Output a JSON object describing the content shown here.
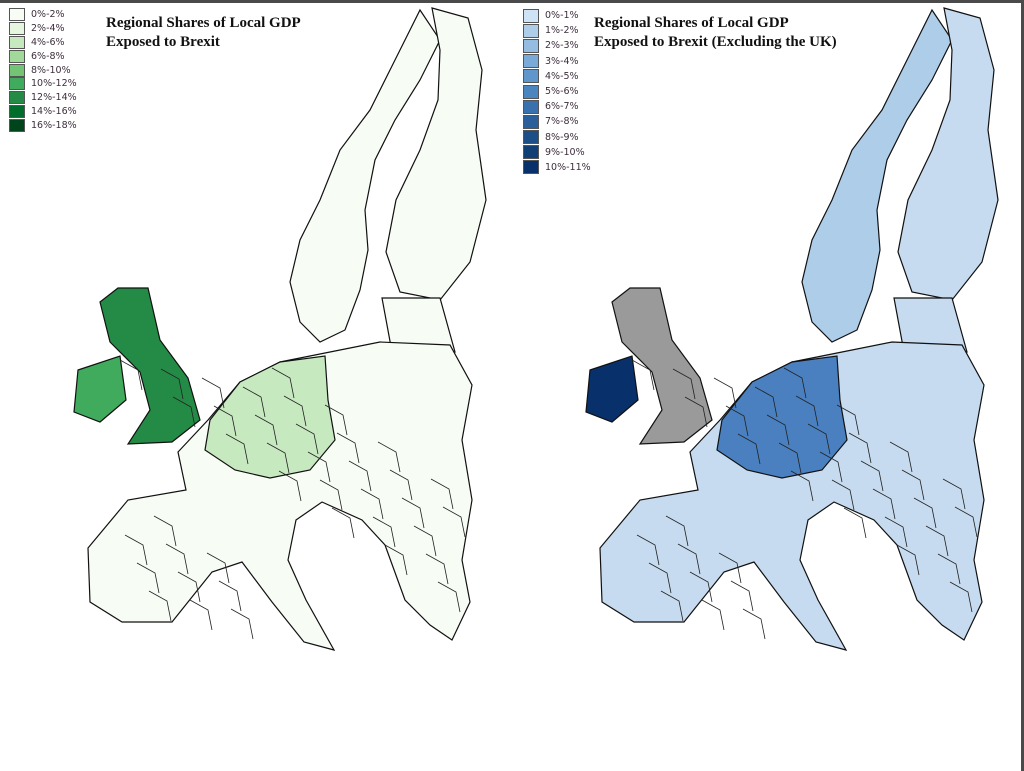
{
  "left_map": {
    "title_line1": "Regional Shares of Local GDP",
    "title_line2": "Exposed to Brexit",
    "legend": [
      {
        "label": "0%-2%",
        "color": "#f7fcf5"
      },
      {
        "label": "2%-4%",
        "color": "#e5f5e0"
      },
      {
        "label": "4%-6%",
        "color": "#c7e9c0"
      },
      {
        "label": "6%-8%",
        "color": "#a1d99b"
      },
      {
        "label": "8%-10%",
        "color": "#74c476"
      },
      {
        "label": "10%-12%",
        "color": "#41ab5d"
      },
      {
        "label": "12%-14%",
        "color": "#238b45"
      },
      {
        "label": "14%-16%",
        "color": "#006d2c"
      },
      {
        "label": "16%-18%",
        "color": "#00441b"
      }
    ],
    "fills": {
      "continent": "#f7fcf5",
      "core": "#c7e9c0",
      "britain": "#238b45",
      "ireland": "#41ab5d"
    }
  },
  "right_map": {
    "title_line1": "Regional Shares of Local GDP",
    "title_line2": "Exposed to Brexit (Excluding the UK)",
    "legend": [
      {
        "label": "0%-1%",
        "color": "#cfe3f7"
      },
      {
        "label": "1%-2%",
        "color": "#aecde9"
      },
      {
        "label": "2%-3%",
        "color": "#95bde2"
      },
      {
        "label": "3%-4%",
        "color": "#7aabd8"
      },
      {
        "label": "4%-5%",
        "color": "#5f97cc"
      },
      {
        "label": "5%-6%",
        "color": "#4a85bf"
      },
      {
        "label": "6%-7%",
        "color": "#3871ae"
      },
      {
        "label": "7%-8%",
        "color": "#2a5f9b"
      },
      {
        "label": "8%-9%",
        "color": "#1c4e88"
      },
      {
        "label": "9%-10%",
        "color": "#0f3f75"
      },
      {
        "label": "10%-11%",
        "color": "#08306b"
      }
    ],
    "fills": {
      "continent": "#c6dbef",
      "core": "#4a80c0",
      "britain": "#9a9a9a",
      "ireland": "#08306b",
      "nordic": "#aecde9"
    }
  }
}
